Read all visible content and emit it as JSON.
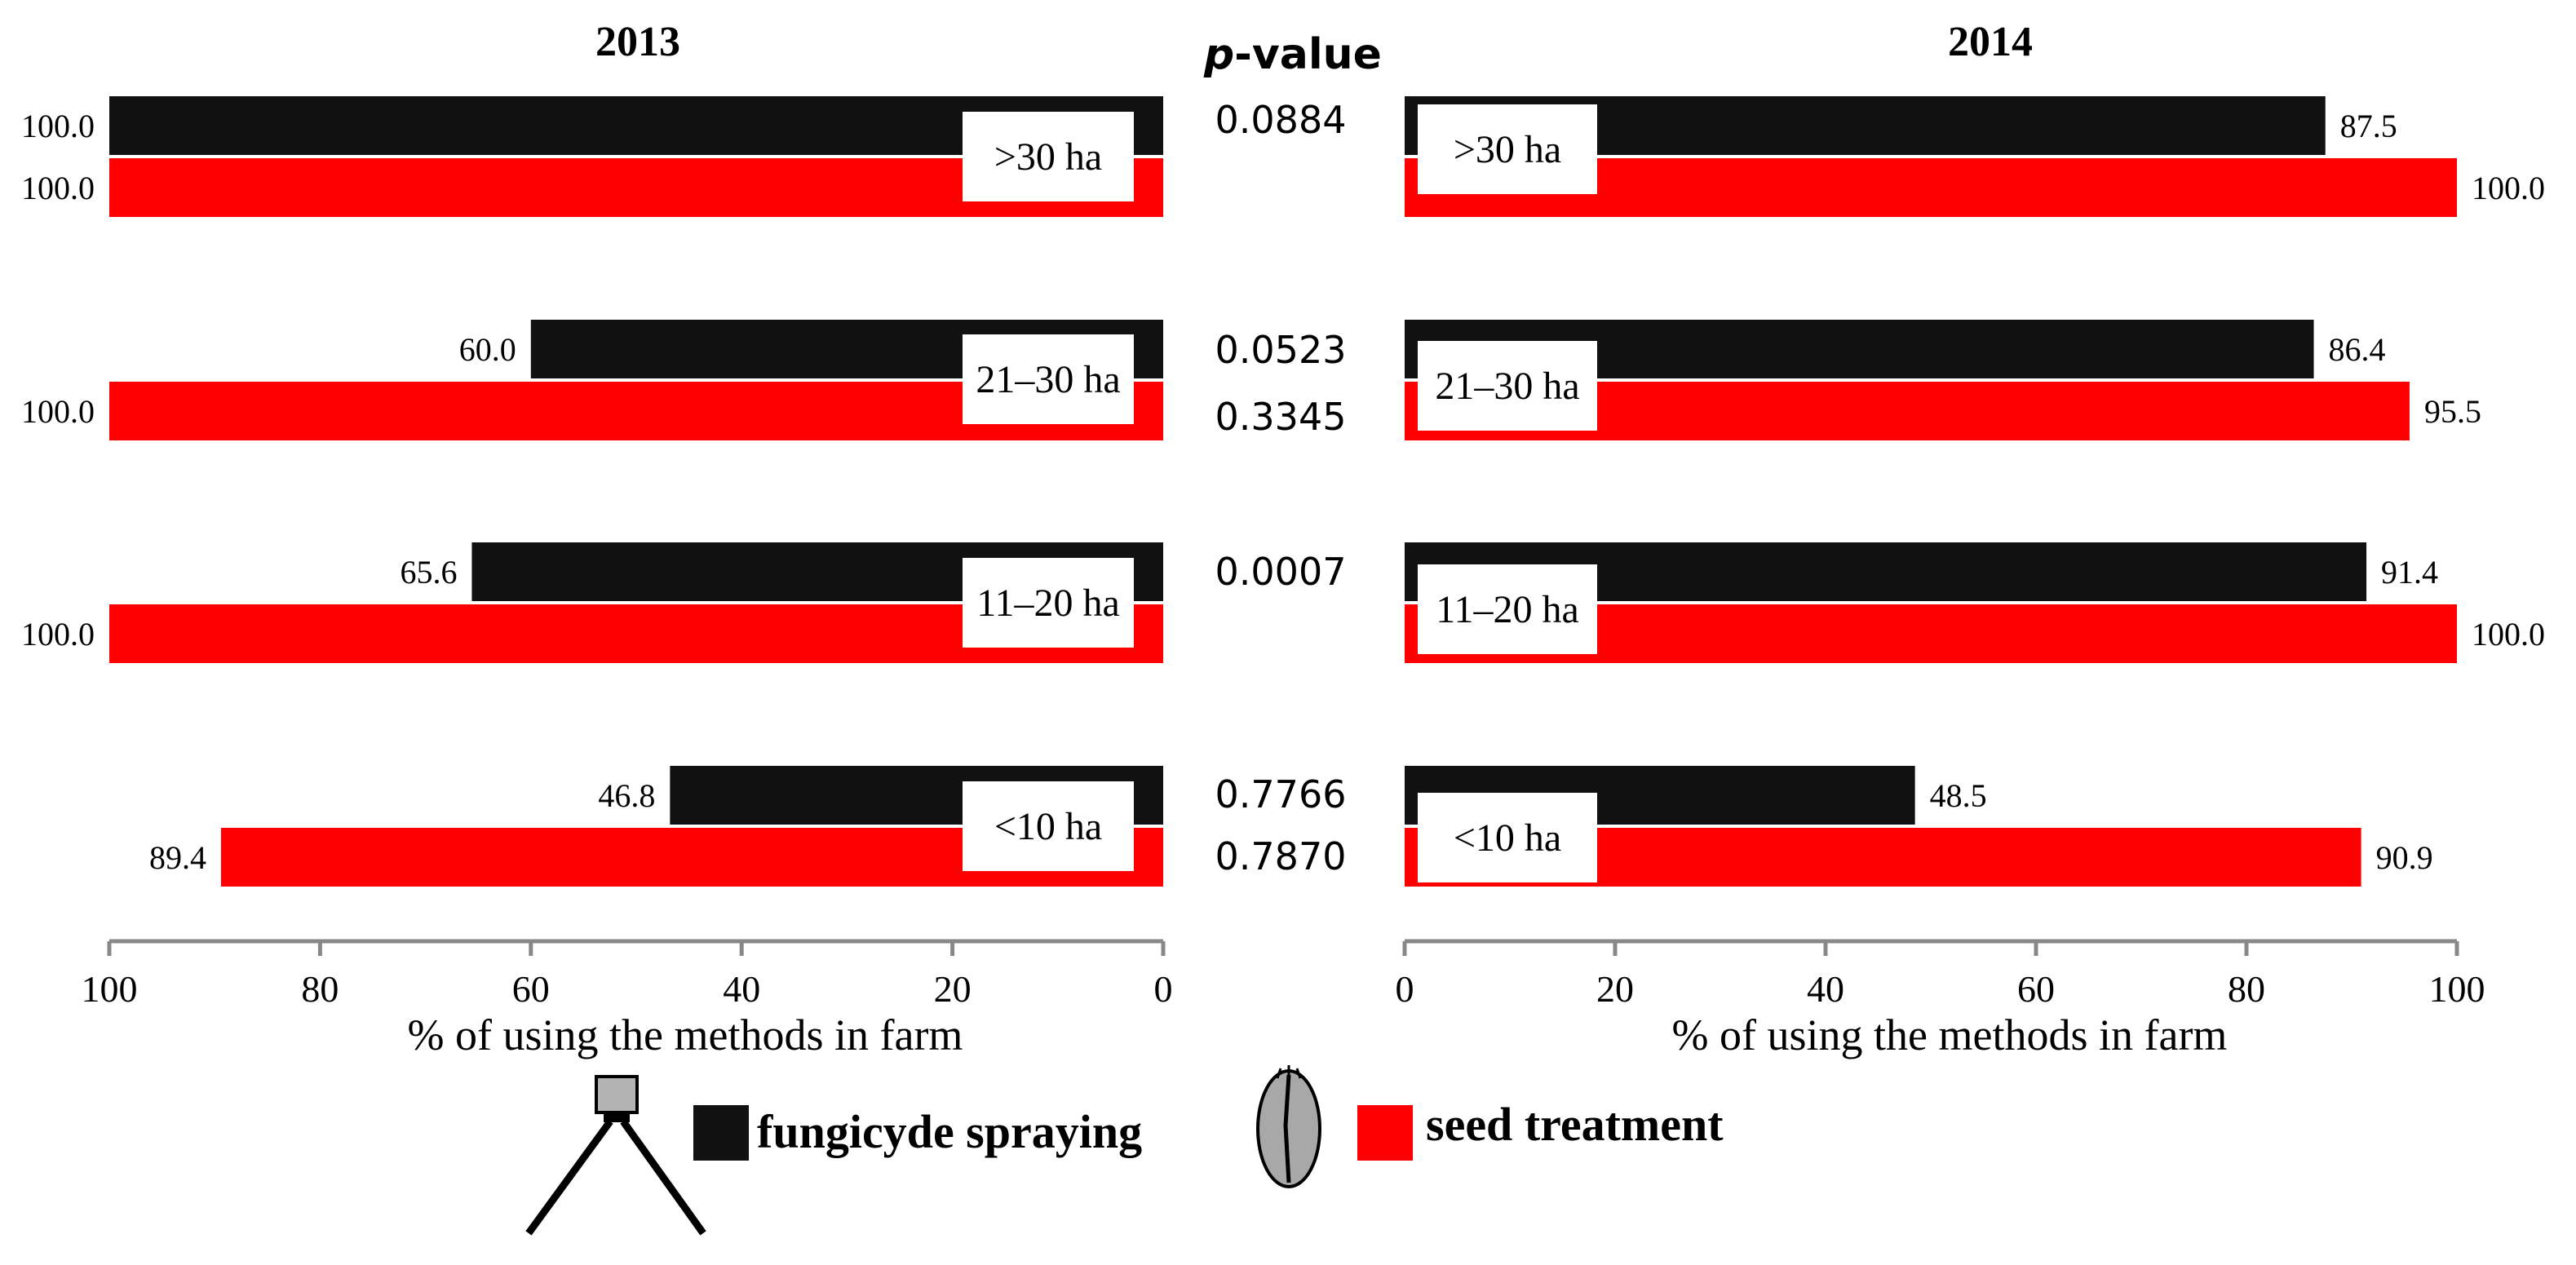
{
  "chart_data": [
    {
      "type": "bar",
      "orientation": "horizontal-reversed",
      "title": "2013",
      "xlabel": "% of using the methods in farm",
      "xlim": [
        0,
        100
      ],
      "xticks": [
        "0",
        "20",
        "40",
        "60",
        "80",
        "100"
      ],
      "categories": [
        ">30 ha",
        "21–30 ha",
        "11–20 ha",
        "<10 ha"
      ],
      "series": [
        {
          "name": "fungicyde spraying",
          "color": "#111111",
          "values": [
            100.0,
            60.0,
            65.6,
            46.8
          ],
          "labels": [
            "100.0",
            "60.0",
            "65.6",
            "46.8"
          ]
        },
        {
          "name": "seed treatment",
          "color": "#ff0000",
          "values": [
            100.0,
            100.0,
            100.0,
            89.4
          ],
          "labels": [
            "100.0",
            "100.0",
            "100.0",
            "89.4"
          ]
        }
      ]
    },
    {
      "type": "bar",
      "orientation": "horizontal",
      "title": "2014",
      "xlabel": "% of using the methods in farm",
      "xlim": [
        0,
        100
      ],
      "xticks": [
        "0",
        "20",
        "40",
        "60",
        "80",
        "100"
      ],
      "categories": [
        ">30 ha",
        "21–30 ha",
        "11–20 ha",
        "<10 ha"
      ],
      "series": [
        {
          "name": "fungicyde spraying",
          "color": "#111111",
          "values": [
            87.5,
            86.4,
            91.4,
            48.5
          ],
          "labels": [
            "87.5",
            "86.4",
            "91.4",
            "48.5"
          ]
        },
        {
          "name": "seed treatment",
          "color": "#ff0000",
          "values": [
            100.0,
            95.5,
            100.0,
            90.9
          ],
          "labels": [
            "100.0",
            "95.5",
            "100.0",
            "90.9"
          ]
        }
      ]
    }
  ],
  "pvalue": {
    "title_italic": "p",
    "title_rest": "-value",
    "values": [
      "0.0884",
      "0.0523",
      "0.3345",
      "0.0007",
      "0.7766",
      "0.7870"
    ]
  },
  "legend": {
    "items": [
      {
        "label": "fungicyde spraying",
        "color": "#111111",
        "icon": "sprayer-icon"
      },
      {
        "label": "seed treatment",
        "color": "#ff0000",
        "icon": "seed-icon"
      }
    ]
  }
}
